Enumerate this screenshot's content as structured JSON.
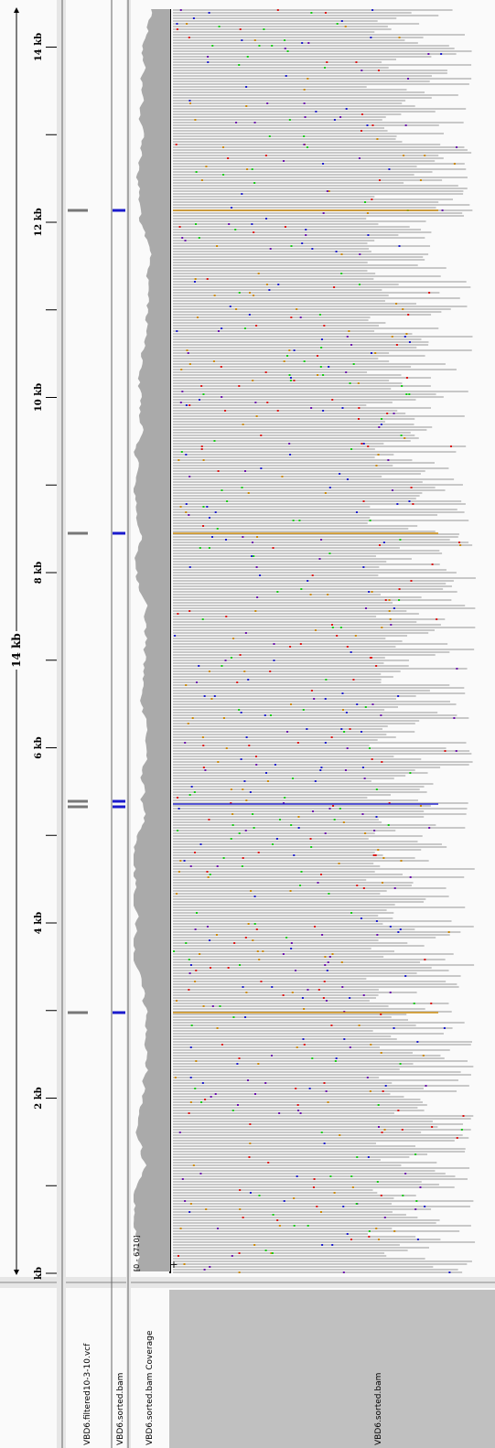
{
  "ruler": {
    "span_label": "14 kb",
    "ticks": [
      "kb",
      "2 kb",
      "4 kb",
      "6 kb",
      "8 kb",
      "10 kb",
      "12 kb",
      "14 kb"
    ]
  },
  "coverage": {
    "range_label": "[0 - 6710]",
    "expand_label": "+"
  },
  "track_names": [
    "VBD6.filtered10-3-10.vcf",
    "VBD6.sorted.bam",
    "VBD6.sorted.bam Coverage",
    "VBD6.sorted.bam"
  ]
}
